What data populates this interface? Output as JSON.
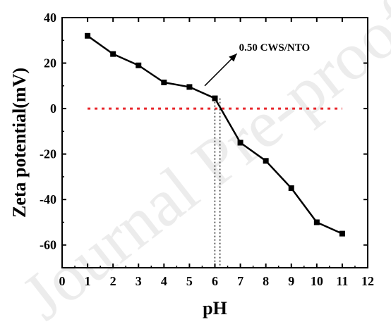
{
  "chart_data": {
    "type": "line",
    "title": "",
    "xlabel": "pH",
    "ylabel": "Zeta potential(mV)",
    "xlim": [
      0,
      12
    ],
    "ylim": [
      -70,
      40
    ],
    "x_ticks": [
      0,
      1,
      2,
      3,
      4,
      5,
      6,
      7,
      8,
      9,
      10,
      11,
      12
    ],
    "y_ticks": [
      -60,
      -40,
      -20,
      0,
      20,
      40
    ],
    "series": [
      {
        "name": "0.50 CWS/NTO",
        "x": [
          1,
          2,
          3,
          4,
          5,
          6,
          7,
          8,
          9,
          10,
          11
        ],
        "y": [
          32,
          24,
          19,
          11.5,
          9.5,
          4.5,
          -15,
          -23,
          -35,
          -50,
          -55
        ]
      }
    ],
    "reference_lines": {
      "zero_line": {
        "y": 0,
        "style": "dotted",
        "color": "#e8262b"
      },
      "isoelectric_marks": [
        {
          "x": 6.0,
          "style": "dotted",
          "color": "#000000"
        },
        {
          "x": 6.2,
          "style": "dotted",
          "color": "#000000"
        }
      ]
    },
    "annotation": {
      "text": "0.50 CWS/NTO",
      "points_to": {
        "x": 5.6,
        "y": 10
      },
      "label_at": {
        "x": 7.0,
        "y": 26
      }
    },
    "grid": false,
    "line_color": "#000000",
    "marker": "square"
  },
  "watermark": {
    "text": "Journal Pre-proof",
    "color": "#e6e6e6"
  }
}
